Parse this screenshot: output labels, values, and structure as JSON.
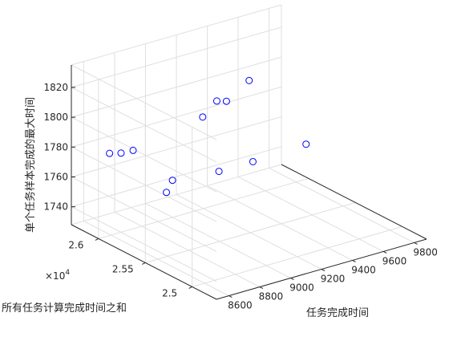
{
  "chart_data": {
    "type": "scatter3d",
    "title": "",
    "xlabel": "任务完成时间",
    "ylabel": "所有任务计算完成时间之和",
    "zlabel": "单个任务样本完成的最大时间",
    "x_ticks": [
      "8600",
      "8800",
      "9000",
      "9200",
      "9400",
      "9600",
      "9800"
    ],
    "y_ticks": [
      "2.5",
      "2.55",
      "2.6"
    ],
    "y_exponent_base": "×10",
    "y_exponent_power": "4",
    "z_ticks": [
      "1740",
      "1760",
      "1780",
      "1800",
      "1820"
    ],
    "xlim": [
      8520,
      9880
    ],
    "ylim": [
      24740,
      26290
    ],
    "zlim": [
      1728,
      1835
    ],
    "grid": true,
    "marker": "circle",
    "marker_color": "#0000ff",
    "points": [
      {
        "x": 8640,
        "y": 26080,
        "z": 1779
      },
      {
        "x": 8690,
        "y": 26040,
        "z": 1779
      },
      {
        "x": 8750,
        "y": 26010,
        "z": 1780
      },
      {
        "x": 8790,
        "y": 25720,
        "z": 1760
      },
      {
        "x": 8720,
        "y": 25540,
        "z": 1776
      },
      {
        "x": 9130,
        "y": 25720,
        "z": 1764
      },
      {
        "x": 9350,
        "y": 25720,
        "z": 1764
      },
      {
        "x": 9140,
        "y": 25910,
        "z": 1794
      },
      {
        "x": 9280,
        "y": 25990,
        "z": 1798
      },
      {
        "x": 9330,
        "y": 25970,
        "z": 1797
      },
      {
        "x": 9700,
        "y": 25730,
        "z": 1765
      },
      {
        "x": 9580,
        "y": 26140,
        "z": 1798
      }
    ]
  }
}
